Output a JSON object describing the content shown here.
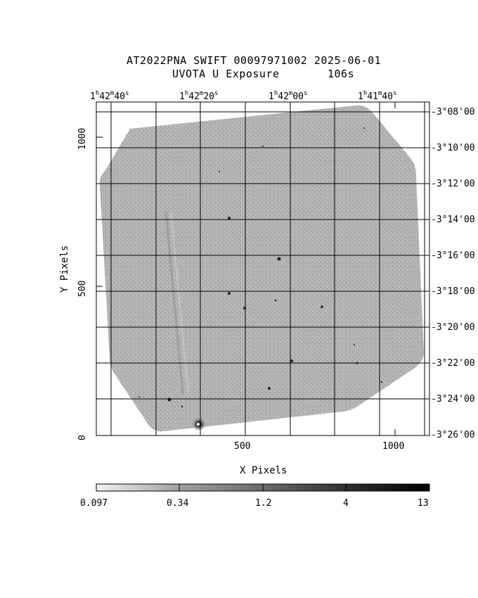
{
  "header": {
    "title_line1": "AT2022PNA SWIFT 00097971002 2025-06-01",
    "title_line2_left": "UVOTA U Exposure",
    "title_line2_right": "106s"
  },
  "axes": {
    "xlabel": "X Pixels",
    "ylabel": "Y Pixels",
    "x_ticks": [
      "500",
      "1000"
    ],
    "y_ticks": [
      "0",
      "500",
      "1000"
    ],
    "ra_ticks": [
      {
        "h": "1",
        "m": "42",
        "s": "40"
      },
      {
        "h": "1",
        "m": "42",
        "s": "20"
      },
      {
        "h": "1",
        "m": "42",
        "s": "00"
      },
      {
        "h": "1",
        "m": "41",
        "s": "40"
      }
    ],
    "dec_ticks": [
      "-3°08'00",
      "-3°10'00",
      "-3°12'00",
      "-3°14'00",
      "-3°16'00",
      "-3°18'00",
      "-3°20'00",
      "-3°22'00",
      "-3°24'00",
      "-3°26'00"
    ]
  },
  "colorbar": {
    "labels": [
      "0.097",
      "0.34",
      "1.2",
      "4",
      "13"
    ]
  },
  "colors": {
    "image_fill": "#a9a9a9",
    "grid": "#000000"
  }
}
